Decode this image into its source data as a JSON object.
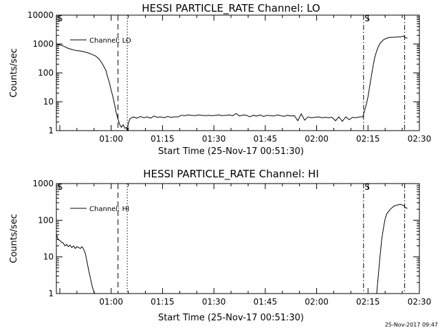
{
  "stamp": "25-Nov-2017 09:47",
  "chart_data": [
    {
      "type": "line",
      "title": "HESSI PARTICLE_RATE Channel: LO",
      "xlabel": "Start Time (25-Nov-17 00:51:30)",
      "ylabel": "Counts/sec",
      "yscale": "log",
      "xlim_min": [
        -7.5,
        98.5
      ],
      "ylim": [
        1,
        10000
      ],
      "xticks": [
        {
          "min": 8.5,
          "label": "01:00"
        },
        {
          "min": 23.5,
          "label": "01:15"
        },
        {
          "min": 38.5,
          "label": "01:30"
        },
        {
          "min": 53.5,
          "label": "01:45"
        },
        {
          "min": 68.5,
          "label": "02:00"
        },
        {
          "min": 83.5,
          "label": "02:15"
        },
        {
          "min": 98.5,
          "label": "02:30"
        }
      ],
      "yticks": [
        {
          "v": 1,
          "label": "1"
        },
        {
          "v": 10,
          "label": "10"
        },
        {
          "v": 100,
          "label": "100"
        },
        {
          "v": 1000,
          "label": "1000"
        },
        {
          "v": 10000,
          "label": "10000"
        }
      ],
      "legend": "Channel: LO",
      "legend_position": "top-left",
      "markers": [
        {
          "min": -7.2,
          "label": "S"
        },
        {
          "min": 82.5,
          "label": "S"
        }
      ],
      "vlines": [
        {
          "min": 10.5,
          "style": "dashed"
        },
        {
          "min": 13.2,
          "style": "dotted"
        },
        {
          "min": 82.2,
          "style": "dashdot"
        },
        {
          "min": 94.2,
          "style": "dashdot"
        }
      ],
      "series": [
        {
          "x": [
            -7.5,
            -6,
            -5,
            -4,
            -3,
            -2,
            -1,
            0,
            1,
            2,
            3,
            4,
            5,
            6,
            7,
            7.5,
            8,
            8.5,
            9,
            9.5,
            10,
            10.5,
            11,
            11.5,
            12,
            12.5,
            13,
            13.2,
            13.5,
            14
          ],
          "y": [
            1000,
            900,
            800,
            700,
            650,
            600,
            580,
            560,
            520,
            480,
            430,
            380,
            300,
            200,
            120,
            70,
            45,
            25,
            15,
            8,
            4,
            2.5,
            1.6,
            1.3,
            1.6,
            1.2,
            1.3,
            0.9,
            1.8,
            2.6
          ]
        },
        {
          "x": [
            14,
            15,
            16,
            17,
            18,
            19,
            20,
            21,
            22,
            23,
            24,
            25,
            26,
            27,
            28,
            29,
            30,
            31,
            32,
            33,
            34,
            35,
            36,
            37,
            38,
            39,
            40,
            41,
            42,
            43,
            44,
            45,
            46,
            47,
            48,
            49,
            50,
            51,
            52,
            53,
            54,
            55,
            56,
            57,
            58,
            59,
            60,
            61,
            62,
            63,
            64,
            65,
            66,
            67,
            68,
            69,
            70,
            71,
            72,
            73,
            74,
            75,
            76,
            77,
            78,
            79,
            80,
            81,
            82
          ],
          "y": [
            2.6,
            3.0,
            2.7,
            3.1,
            2.8,
            3.0,
            2.7,
            3.2,
            2.9,
            3.0,
            2.8,
            3.1,
            2.9,
            3.0,
            3.0,
            3.4,
            3.3,
            3.5,
            3.4,
            3.3,
            3.5,
            3.4,
            3.3,
            3.4,
            3.3,
            3.4,
            3.5,
            3.3,
            3.4,
            3.5,
            3.3,
            3.9,
            3.2,
            3.5,
            3.4,
            3.0,
            3.4,
            3.2,
            3.5,
            3.1,
            3.4,
            3.3,
            3.2,
            3.5,
            3.3,
            3.1,
            3.4,
            3.2,
            3.3,
            2.2,
            3.8,
            2.3,
            3.0,
            2.8,
            2.9,
            3.0,
            2.8,
            2.9,
            2.8,
            2.9,
            2.2,
            3.0,
            2.1,
            3.0,
            2.4,
            2.9,
            2.8,
            3.0,
            3.0
          ]
        },
        {
          "x": [
            82,
            82.5,
            83,
            83.5,
            84,
            84.5,
            85,
            85.5,
            86,
            86.5,
            87,
            88,
            89,
            90,
            91,
            92,
            93,
            94,
            94.2,
            94.5,
            95
          ],
          "y": [
            3.0,
            5,
            8,
            15,
            35,
            80,
            180,
            350,
            550,
            800,
            1050,
            1400,
            1600,
            1700,
            1700,
            1750,
            1750,
            1900,
            1700,
            1650,
            1600
          ]
        }
      ]
    },
    {
      "type": "line",
      "title": "HESSI PARTICLE_RATE Channel: HI",
      "xlabel": "Start Time (25-Nov-17 00:51:30)",
      "ylabel": "Counts/sec",
      "yscale": "log",
      "xlim_min": [
        -7.5,
        98.5
      ],
      "ylim": [
        1,
        1000
      ],
      "xticks": [
        {
          "min": 8.5,
          "label": "01:00"
        },
        {
          "min": 23.5,
          "label": "01:15"
        },
        {
          "min": 38.5,
          "label": "01:30"
        },
        {
          "min": 53.5,
          "label": "01:45"
        },
        {
          "min": 68.5,
          "label": "02:00"
        },
        {
          "min": 83.5,
          "label": "02:15"
        },
        {
          "min": 98.5,
          "label": "02:30"
        }
      ],
      "yticks": [
        {
          "v": 1,
          "label": "1"
        },
        {
          "v": 10,
          "label": "10"
        },
        {
          "v": 100,
          "label": "100"
        },
        {
          "v": 1000,
          "label": "1000"
        }
      ],
      "legend": "Channel: HI",
      "legend_position": "top-left",
      "markers": [
        {
          "min": -7.2,
          "label": "S"
        },
        {
          "min": 82.5,
          "label": "S"
        }
      ],
      "vlines": [
        {
          "min": 10.5,
          "style": "dashed"
        },
        {
          "min": 13.2,
          "style": "dotted"
        },
        {
          "min": 82.2,
          "style": "dashdot"
        },
        {
          "min": 94.2,
          "style": "dashdot"
        }
      ],
      "series": [
        {
          "x": [
            -7.5,
            -7,
            -6.5,
            -6,
            -5.5,
            -5,
            -4.5,
            -4,
            -3.5,
            -3,
            -2.5,
            -2,
            -1.5,
            -1,
            -0.5,
            0,
            0.5,
            1,
            1.5,
            2,
            2.5,
            3,
            3.5,
            4
          ],
          "y": [
            40,
            30,
            28,
            25,
            24,
            20,
            22,
            19,
            21,
            18,
            20,
            17,
            19,
            18,
            17,
            19,
            16,
            12,
            7,
            4,
            2.5,
            1.5,
            1.1,
            0.9
          ]
        },
        {
          "x": [
            86,
            86.5,
            87,
            87.5,
            88,
            88.5,
            89,
            90,
            91,
            92,
            93,
            94,
            94.2,
            94.5,
            95
          ],
          "y": [
            0.9,
            3,
            10,
            30,
            60,
            110,
            150,
            200,
            240,
            260,
            270,
            250,
            230,
            220,
            210
          ]
        }
      ]
    }
  ]
}
